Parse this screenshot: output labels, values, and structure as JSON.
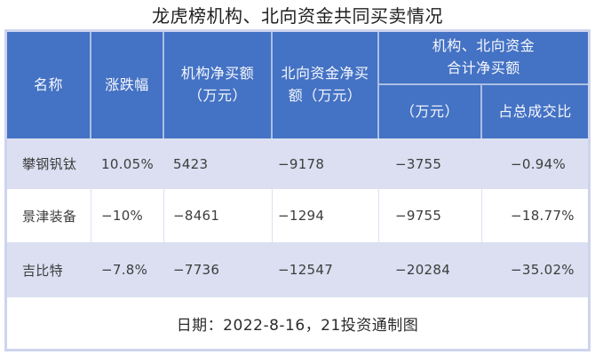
{
  "title": "龙虎榜机构、北向资金共同买卖情况",
  "colors": {
    "header_bg": "#4472c4",
    "header_text": "#f6f8fd",
    "row_alt_bg": "#dbdff1",
    "row_bg": "#ffffff",
    "outer_border": "#cdd4ed",
    "body_text": "#3d3d3d"
  },
  "table": {
    "headers": {
      "name": "名称",
      "change": "涨跌幅",
      "inst_line1": "机构净买额",
      "inst_line2": "（万元）",
      "north_line1": "北向资金净买",
      "north_line2": "额（万元）",
      "group_line1": "机构、北向资金",
      "group_line2": "合计净买额",
      "group_amount": "（万元）",
      "group_ratio": "占总成交比"
    },
    "footer": "日期：2022-8-16，21投资通制图"
  },
  "chart_data": {
    "type": "table",
    "title": "龙虎榜机构、北向资金共同买卖情况",
    "columns": [
      "名称",
      "涨跌幅",
      "机构净买额（万元）",
      "北向资金净买额（万元）",
      "机构、北向资金合计净买额（万元）",
      "机构、北向资金合计净买额占总成交比"
    ],
    "rows": [
      {
        "name": "攀钢钒钛",
        "change": "10.05%",
        "inst": "5423",
        "north": "−9178",
        "combined": "−3755",
        "ratio": "−0.94%"
      },
      {
        "name": "景津装备",
        "change": "−10%",
        "inst": "−8461",
        "north": "−1294",
        "combined": "−9755",
        "ratio": "−18.77%"
      },
      {
        "name": "吉比特",
        "change": "−7.8%",
        "inst": "−7736",
        "north": "−12547",
        "combined": "−20284",
        "ratio": "−35.02%"
      }
    ],
    "note": "日期：2022-8-16，21投资通制图"
  }
}
